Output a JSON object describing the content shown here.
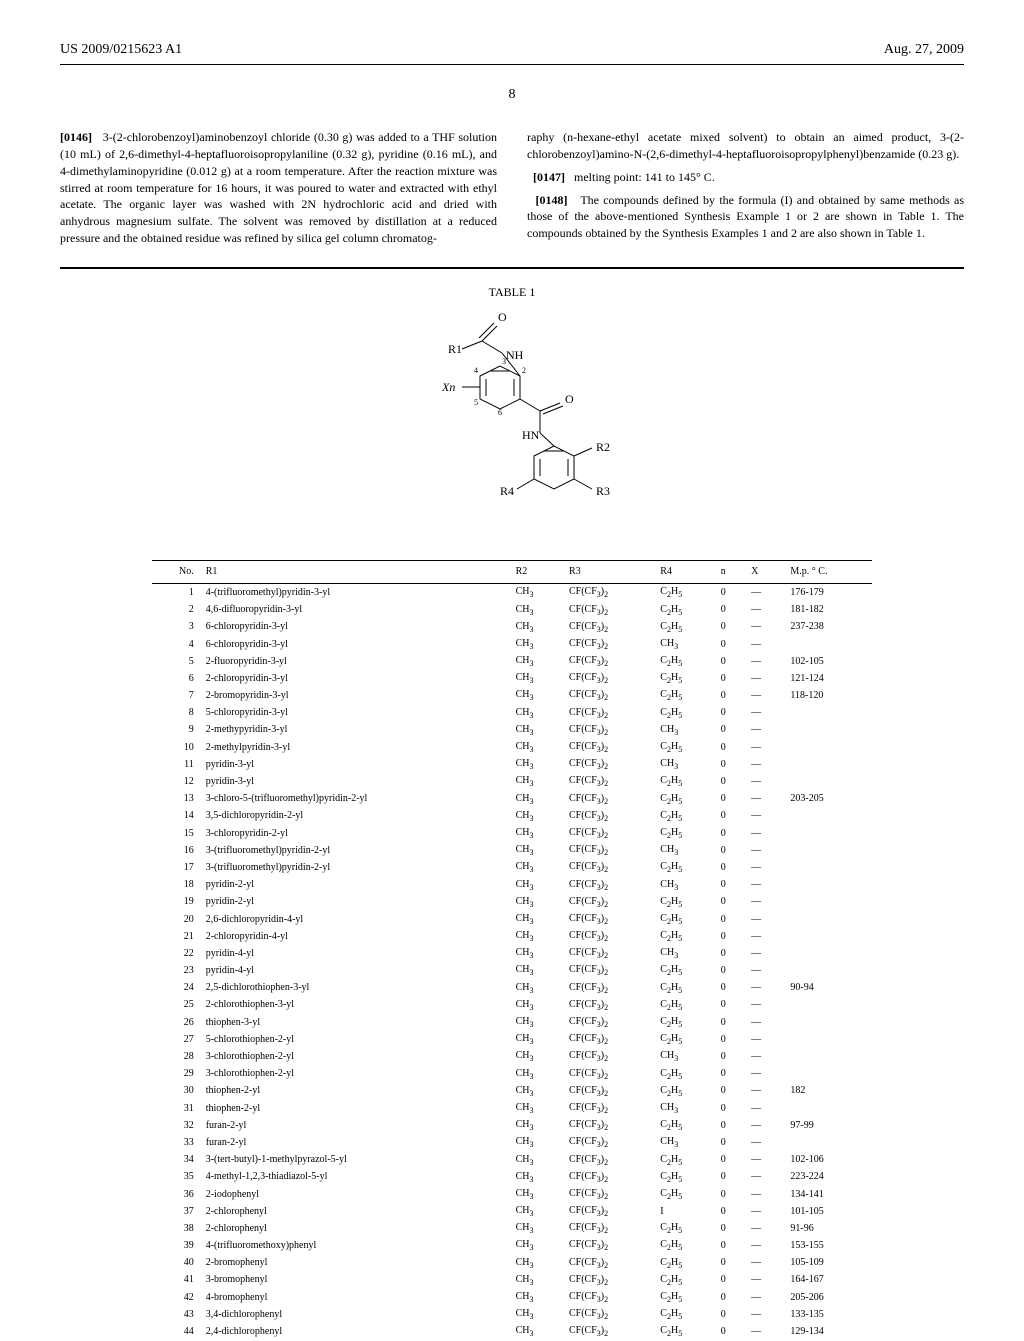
{
  "header": {
    "patent_number": "US 2009/0215623 A1",
    "date": "Aug. 27, 2009"
  },
  "page_number": "8",
  "paragraphs": {
    "p0146_num": "[0146]",
    "p0146": "3-(2-chlorobenzoyl)aminobenzoyl chloride (0.30 g) was added to a THF solution (10 mL) of 2,6-dimethyl-4-heptafluoroisopropylaniline (0.32 g), pyridine (0.16 mL), and 4-dimethylaminopyridine (0.012 g) at a room temperature. After the reaction mixture was stirred at room temperature for 16 hours, it was poured to water and extracted with ethyl acetate. The organic layer was washed with 2N hydrochloric acid and dried with anhydrous magnesium sulfate. The solvent was removed by distillation at a reduced pressure and the obtained residue was refined by silica gel column chromatog-",
    "p0146_cont": "raphy (n-hexane-ethyl acetate mixed solvent) to obtain an aimed product, 3-(2-chlorobenzoyl)amino-N-(2,6-dimethyl-4-heptafluoroisopropylphenyl)benzamide (0.23 g).",
    "p0147_num": "[0147]",
    "p0147": "melting point: 141 to 145° C.",
    "p0148_num": "[0148]",
    "p0148": "The compounds defined by the formula (I) and obtained by same methods as those of the above-mentioned Synthesis Example 1 or 2 are shown in Table 1. The compounds obtained by the Synthesis Examples 1 and 2 are also shown in Table 1."
  },
  "table": {
    "title": "TABLE 1",
    "columns": [
      "No.",
      "R1",
      "R2",
      "R3",
      "R4",
      "n",
      "X",
      "M.p. ° C."
    ],
    "rows": [
      [
        "1",
        "4-(trifluoromethyl)pyridin-3-yl",
        "CH₃",
        "CF(CF₃)₂",
        "C₂H₅",
        "0",
        "—",
        "176-179"
      ],
      [
        "2",
        "4,6-difluoropyridin-3-yl",
        "CH₃",
        "CF(CF₃)₂",
        "C₂H₅",
        "0",
        "—",
        "181-182"
      ],
      [
        "3",
        "6-chloropyridin-3-yl",
        "CH₃",
        "CF(CF₃)₂",
        "C₂H₅",
        "0",
        "—",
        "237-238"
      ],
      [
        "4",
        "6-chloropyridin-3-yl",
        "CH₃",
        "CF(CF₃)₂",
        "CH₃",
        "0",
        "—",
        ""
      ],
      [
        "5",
        "2-fluoropyridin-3-yl",
        "CH₃",
        "CF(CF₃)₂",
        "C₂H₅",
        "0",
        "—",
        "102-105"
      ],
      [
        "6",
        "2-chloropyridin-3-yl",
        "CH₃",
        "CF(CF₃)₂",
        "C₂H₅",
        "0",
        "—",
        "121-124"
      ],
      [
        "7",
        "2-bromopyridin-3-yl",
        "CH₃",
        "CF(CF₃)₂",
        "C₂H₅",
        "0",
        "—",
        "118-120"
      ],
      [
        "8",
        "5-chloropyridin-3-yl",
        "CH₃",
        "CF(CF₃)₂",
        "C₂H₅",
        "0",
        "—",
        ""
      ],
      [
        "9",
        "2-methypyridin-3-yl",
        "CH₃",
        "CF(CF₃)₂",
        "CH₃",
        "0",
        "—",
        ""
      ],
      [
        "10",
        "2-methylpyridin-3-yl",
        "CH₃",
        "CF(CF₃)₂",
        "C₂H₅",
        "0",
        "—",
        ""
      ],
      [
        "11",
        "pyridin-3-yl",
        "CH₃",
        "CF(CF₃)₂",
        "CH₃",
        "0",
        "—",
        ""
      ],
      [
        "12",
        "pyridin-3-yl",
        "CH₃",
        "CF(CF₃)₂",
        "C₂H₅",
        "0",
        "—",
        ""
      ],
      [
        "13",
        "3-chloro-5-(trifluoromethyl)pyridin-2-yl",
        "CH₃",
        "CF(CF₃)₂",
        "C₂H₅",
        "0",
        "—",
        "203-205"
      ],
      [
        "14",
        "3,5-dichloropyridin-2-yl",
        "CH₃",
        "CF(CF₃)₂",
        "C₂H₅",
        "0",
        "—",
        ""
      ],
      [
        "15",
        "3-chloropyridin-2-yl",
        "CH₃",
        "CF(CF₃)₂",
        "C₂H₅",
        "0",
        "—",
        ""
      ],
      [
        "16",
        "3-(trifluoromethyl)pyridin-2-yl",
        "CH₃",
        "CF(CF₃)₂",
        "CH₃",
        "0",
        "—",
        ""
      ],
      [
        "17",
        "3-(trifluoromethyl)pyridin-2-yl",
        "CH₃",
        "CF(CF₃)₂",
        "C₂H₅",
        "0",
        "—",
        ""
      ],
      [
        "18",
        "pyridin-2-yl",
        "CH₃",
        "CF(CF₃)₂",
        "CH₃",
        "0",
        "—",
        ""
      ],
      [
        "19",
        "pyridin-2-yl",
        "CH₃",
        "CF(CF₃)₂",
        "C₂H₅",
        "0",
        "—",
        ""
      ],
      [
        "20",
        "2,6-dichloropyridin-4-yl",
        "CH₃",
        "CF(CF₃)₂",
        "C₂H₅",
        "0",
        "—",
        ""
      ],
      [
        "21",
        "2-chloropyridin-4-yl",
        "CH₃",
        "CF(CF₃)₂",
        "C₂H₅",
        "0",
        "—",
        ""
      ],
      [
        "22",
        "pyridin-4-yl",
        "CH₃",
        "CF(CF₃)₂",
        "CH₃",
        "0",
        "—",
        ""
      ],
      [
        "23",
        "pyridin-4-yl",
        "CH₃",
        "CF(CF₃)₂",
        "C₂H₅",
        "0",
        "—",
        ""
      ],
      [
        "24",
        "2,5-dichlorothiophen-3-yl",
        "CH₃",
        "CF(CF₃)₂",
        "C₂H₅",
        "0",
        "—",
        "90-94"
      ],
      [
        "25",
        "2-chlorothiophen-3-yl",
        "CH₃",
        "CF(CF₃)₂",
        "C₂H₅",
        "0",
        "—",
        ""
      ],
      [
        "26",
        "thiophen-3-yl",
        "CH₃",
        "CF(CF₃)₂",
        "C₂H₅",
        "0",
        "—",
        ""
      ],
      [
        "27",
        "5-chlorothiophen-2-yl",
        "CH₃",
        "CF(CF₃)₂",
        "C₂H₅",
        "0",
        "—",
        ""
      ],
      [
        "28",
        "3-chlorothiophen-2-yl",
        "CH₃",
        "CF(CF₃)₂",
        "CH₃",
        "0",
        "—",
        ""
      ],
      [
        "29",
        "3-chlorothiophen-2-yl",
        "CH₃",
        "CF(CF₃)₂",
        "C₂H₅",
        "0",
        "—",
        ""
      ],
      [
        "30",
        "thiophen-2-yl",
        "CH₃",
        "CF(CF₃)₂",
        "C₂H₅",
        "0",
        "—",
        "182"
      ],
      [
        "31",
        "thiophen-2-yl",
        "CH₃",
        "CF(CF₃)₂",
        "CH₃",
        "0",
        "—",
        ""
      ],
      [
        "32",
        "furan-2-yl",
        "CH₃",
        "CF(CF₃)₂",
        "C₂H₅",
        "0",
        "—",
        "97-99"
      ],
      [
        "33",
        "furan-2-yl",
        "CH₃",
        "CF(CF₃)₂",
        "CH₃",
        "0",
        "—",
        ""
      ],
      [
        "34",
        "3-(tert-butyl)-1-methylpyrazol-5-yl",
        "CH₃",
        "CF(CF₃)₂",
        "C₂H₅",
        "0",
        "—",
        "102-106"
      ],
      [
        "35",
        "4-methyl-1,2,3-thiadiazol-5-yl",
        "CH₃",
        "CF(CF₃)₂",
        "C₂H₅",
        "0",
        "—",
        "223-224"
      ],
      [
        "36",
        "2-iodophenyl",
        "CH₃",
        "CF(CF₃)₂",
        "C₂H₅",
        "0",
        "—",
        "134-141"
      ],
      [
        "37",
        "2-chlorophenyl",
        "CH₃",
        "CF(CF₃)₂",
        "I",
        "0",
        "—",
        "101-105"
      ],
      [
        "38",
        "2-chlorophenyl",
        "CH₃",
        "CF(CF₃)₂",
        "C₂H₅",
        "0",
        "—",
        "91-96"
      ],
      [
        "39",
        "4-(trifluoromethoxy)phenyl",
        "CH₃",
        "CF(CF₃)₂",
        "C₂H₅",
        "0",
        "—",
        "153-155"
      ],
      [
        "40",
        "2-bromophenyl",
        "CH₃",
        "CF(CF₃)₂",
        "C₂H₅",
        "0",
        "—",
        "105-109"
      ],
      [
        "41",
        "3-bromophenyl",
        "CH₃",
        "CF(CF₃)₂",
        "C₂H₅",
        "0",
        "—",
        "164-167"
      ],
      [
        "42",
        "4-bromophenyl",
        "CH₃",
        "CF(CF₃)₂",
        "C₂H₅",
        "0",
        "—",
        "205-206"
      ],
      [
        "43",
        "3,4-dichlorophenyl",
        "CH₃",
        "CF(CF₃)₂",
        "C₂H₅",
        "0",
        "—",
        "133-135"
      ],
      [
        "44",
        "2,4-dichlorophenyl",
        "CH₃",
        "CF(CF₃)₂",
        "C₂H₅",
        "0",
        "—",
        "129-134"
      ]
    ]
  },
  "structure_labels": {
    "r1": "R1",
    "r2": "R2",
    "r3": "R3",
    "r4": "R4",
    "xn": "Xn",
    "nh": "NH",
    "hn": "HN",
    "o1": "O",
    "o2": "O",
    "n2": "2",
    "n3": "3",
    "n4": "4",
    "n5": "5",
    "n6": "6"
  }
}
